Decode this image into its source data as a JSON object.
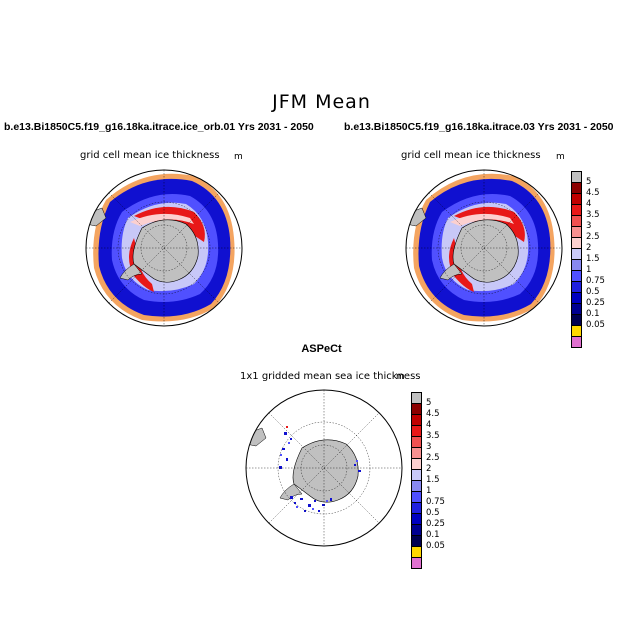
{
  "figure": {
    "title": "JFM Mean"
  },
  "panels": [
    {
      "case_title": "b.e13.Bi1850C5.f19_g16.18ka.itrace.ice_orb.01  Yrs 2031 - 2050",
      "subtitle": "grid cell mean ice thickness",
      "units": "m"
    },
    {
      "case_title": "b.e13.Bi1850C5.f19_g16.18ka.itrace.03  Yrs 2031 - 2050",
      "subtitle": "grid cell mean ice thickness",
      "units": "m"
    },
    {
      "case_title": "ASPeCt",
      "subtitle": "1x1 gridded mean sea ice thickness",
      "units": "m"
    }
  ],
  "colorbar": {
    "labels": [
      "5",
      "4.5",
      "4",
      "3.5",
      "3",
      "2.5",
      "2",
      "1.5",
      "1",
      "0.75",
      "0.5",
      "0.25",
      "0.1",
      "0.05"
    ],
    "colors": [
      "#c0c0c0",
      "#8b0000",
      "#c00000",
      "#e81818",
      "#f05050",
      "#f89090",
      "#fcd0d0",
      "#c8c8f8",
      "#8888f0",
      "#5050ff",
      "#2020e0",
      "#0000c0",
      "#000090",
      "#000050",
      "#ffd700",
      "#e070d0"
    ]
  }
}
